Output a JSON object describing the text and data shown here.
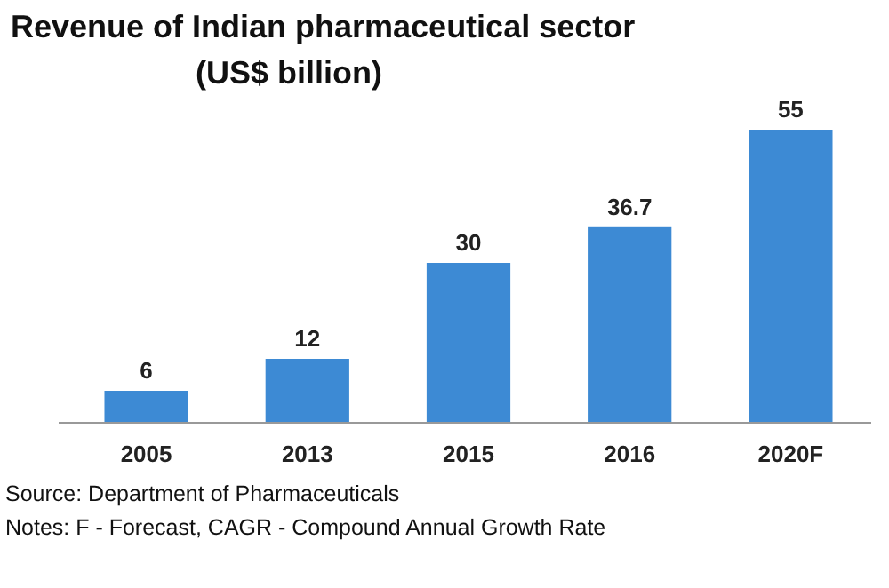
{
  "chart_data": {
    "type": "bar",
    "title": "Revenue of Indian pharmaceutical sector",
    "subtitle": "(US$ billion)",
    "categories": [
      "2005",
      "2013",
      "2015",
      "2016",
      "2020F"
    ],
    "values": [
      6,
      12,
      30,
      36.7,
      55
    ],
    "color": "#3d8ad4",
    "data_labels": true,
    "annotations": [
      "Source: Department of Pharmaceuticals",
      "Notes: F - Forecast, CAGR - Compound Annual Growth Rate"
    ]
  }
}
